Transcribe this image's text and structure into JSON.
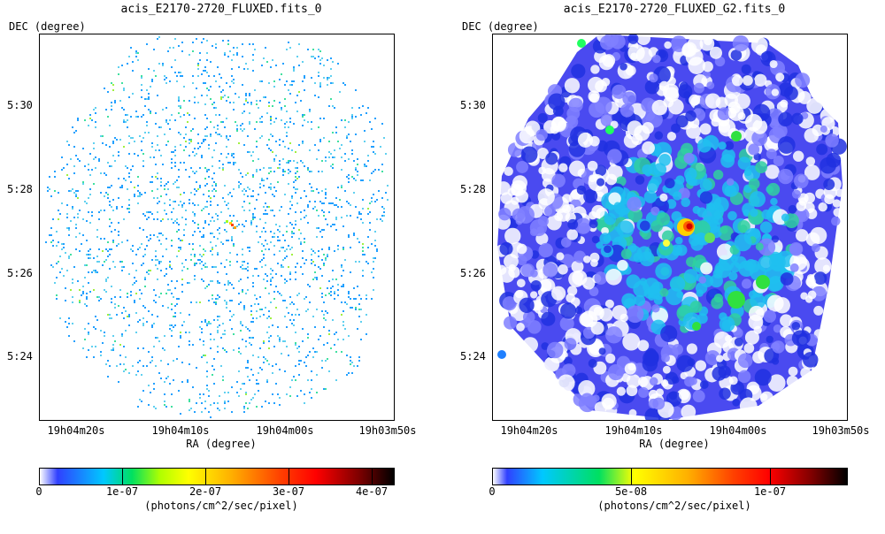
{
  "left_panel": {
    "title": "acis_E2170-2720_FLUXED.fits_0",
    "y_axis_label": "DEC (degree)",
    "x_axis_label": "RA (degree)",
    "y_ticks": [
      "5:30",
      "5:28",
      "5:26",
      "5:24"
    ],
    "x_ticks": [
      "19h04m20s",
      "19h04m10s",
      "19h04m00s",
      "19h03m50s"
    ],
    "colorbar_labels": [
      "0",
      "1e-07",
      "2e-07",
      "3e-07",
      "4e-07"
    ],
    "colorbar_units": "(photons/cm^2/sec/pixel)"
  },
  "right_panel": {
    "title": "acis_E2170-2720_FLUXED_G2.fits_0",
    "y_axis_label": "DEC (degree)",
    "x_axis_label": "RA (degree)",
    "y_ticks": [
      "5:30",
      "5:28",
      "5:26",
      "5:24"
    ],
    "x_ticks": [
      "19h04m20s",
      "19h04m10s",
      "19h04m00s",
      "19h03m50s"
    ],
    "colorbar_labels": [
      "0",
      "5e-08",
      "1e-07"
    ],
    "colorbar_units": "(photons/cm^2/sec/pixel)"
  },
  "colors": {
    "colormap": [
      "#ffffff",
      "#0000ff",
      "#00c8ff",
      "#00ff80",
      "#ffff00",
      "#ff8000",
      "#ff0000",
      "#000000"
    ]
  }
}
